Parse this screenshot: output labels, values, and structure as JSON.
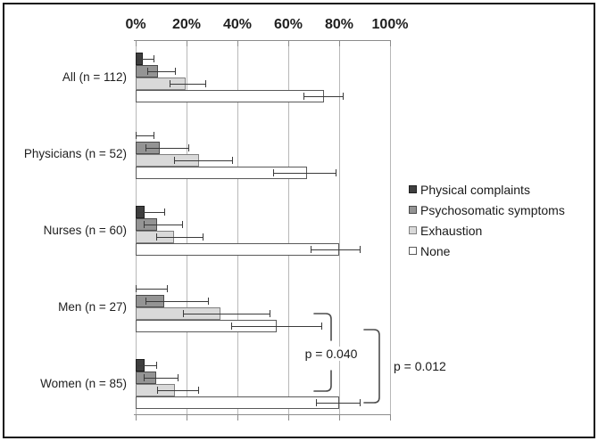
{
  "figure": {
    "background": "#ffffff",
    "frame_border_color": "#111111",
    "gridline_color": "#b8b8b8",
    "axis_color": "#8c8c8c",
    "error_bar_color": "#3a3a3a"
  },
  "chart_data": {
    "type": "bar",
    "orientation": "horizontal",
    "unit": "percent",
    "title": "",
    "categories": [
      "All (n = 112)",
      "Physicians (n = 52)",
      "Nurses (n = 60)",
      "Men (n = 27)",
      "Women (n = 85)"
    ],
    "series": [
      {
        "name": "Physical complaints",
        "fill": "#3f3f3f",
        "border": "#1f1f1f",
        "values": [
          2.7,
          0,
          3.5,
          0,
          3.5
        ],
        "ci_low": [
          0.6,
          0,
          0.8,
          0,
          0.8
        ],
        "ci_high": [
          7.0,
          7.0,
          11.3,
          12.2,
          8.1
        ]
      },
      {
        "name": "Psychosomatic symptoms",
        "fill": "#949494",
        "border": "#4a4a4a",
        "values": [
          8.9,
          9.6,
          8.3,
          11.1,
          8.2
        ],
        "ci_low": [
          4.4,
          3.8,
          3.0,
          3.8,
          3.0
        ],
        "ci_high": [
          15.5,
          20.8,
          18.4,
          28.5,
          16.6
        ]
      },
      {
        "name": "Exhaustion",
        "fill": "#d9d9d9",
        "border": "#808080",
        "values": [
          19.6,
          25.0,
          15.0,
          33.3,
          15.3
        ],
        "ci_low": [
          13.2,
          15.2,
          7.9,
          18.7,
          8.4
        ],
        "ci_high": [
          27.5,
          38.0,
          26.4,
          52.8,
          24.6
        ]
      },
      {
        "name": "None",
        "fill": "#ffffff",
        "border": "#595959",
        "values": [
          74.1,
          67.3,
          80.0,
          55.6,
          80.0
        ],
        "ci_low": [
          65.8,
          54.0,
          68.8,
          37.5,
          70.9
        ],
        "ci_high": [
          81.4,
          78.5,
          88.2,
          73.0,
          88.0
        ]
      }
    ],
    "x_axis": {
      "position": "top",
      "range": [
        0,
        100
      ],
      "tick_values": [
        0,
        20,
        40,
        60,
        80,
        100
      ],
      "tick_labels": [
        "0%",
        "20%",
        "40%",
        "60%",
        "80%",
        "100%"
      ],
      "grid": true
    },
    "error_bars": true,
    "legend": {
      "position": "right",
      "items": [
        "Physical complaints",
        "Psychosomatic symptoms",
        "Exhaustion",
        "None"
      ]
    },
    "annotations": [
      {
        "label": "p = 0.040",
        "connects": [
          "Men (n = 27): Exhaustion",
          "Women (n = 85): Exhaustion"
        ]
      },
      {
        "label": "p = 0.012",
        "connects": [
          "Men (n = 27): None",
          "Women (n = 85): None"
        ]
      }
    ]
  }
}
